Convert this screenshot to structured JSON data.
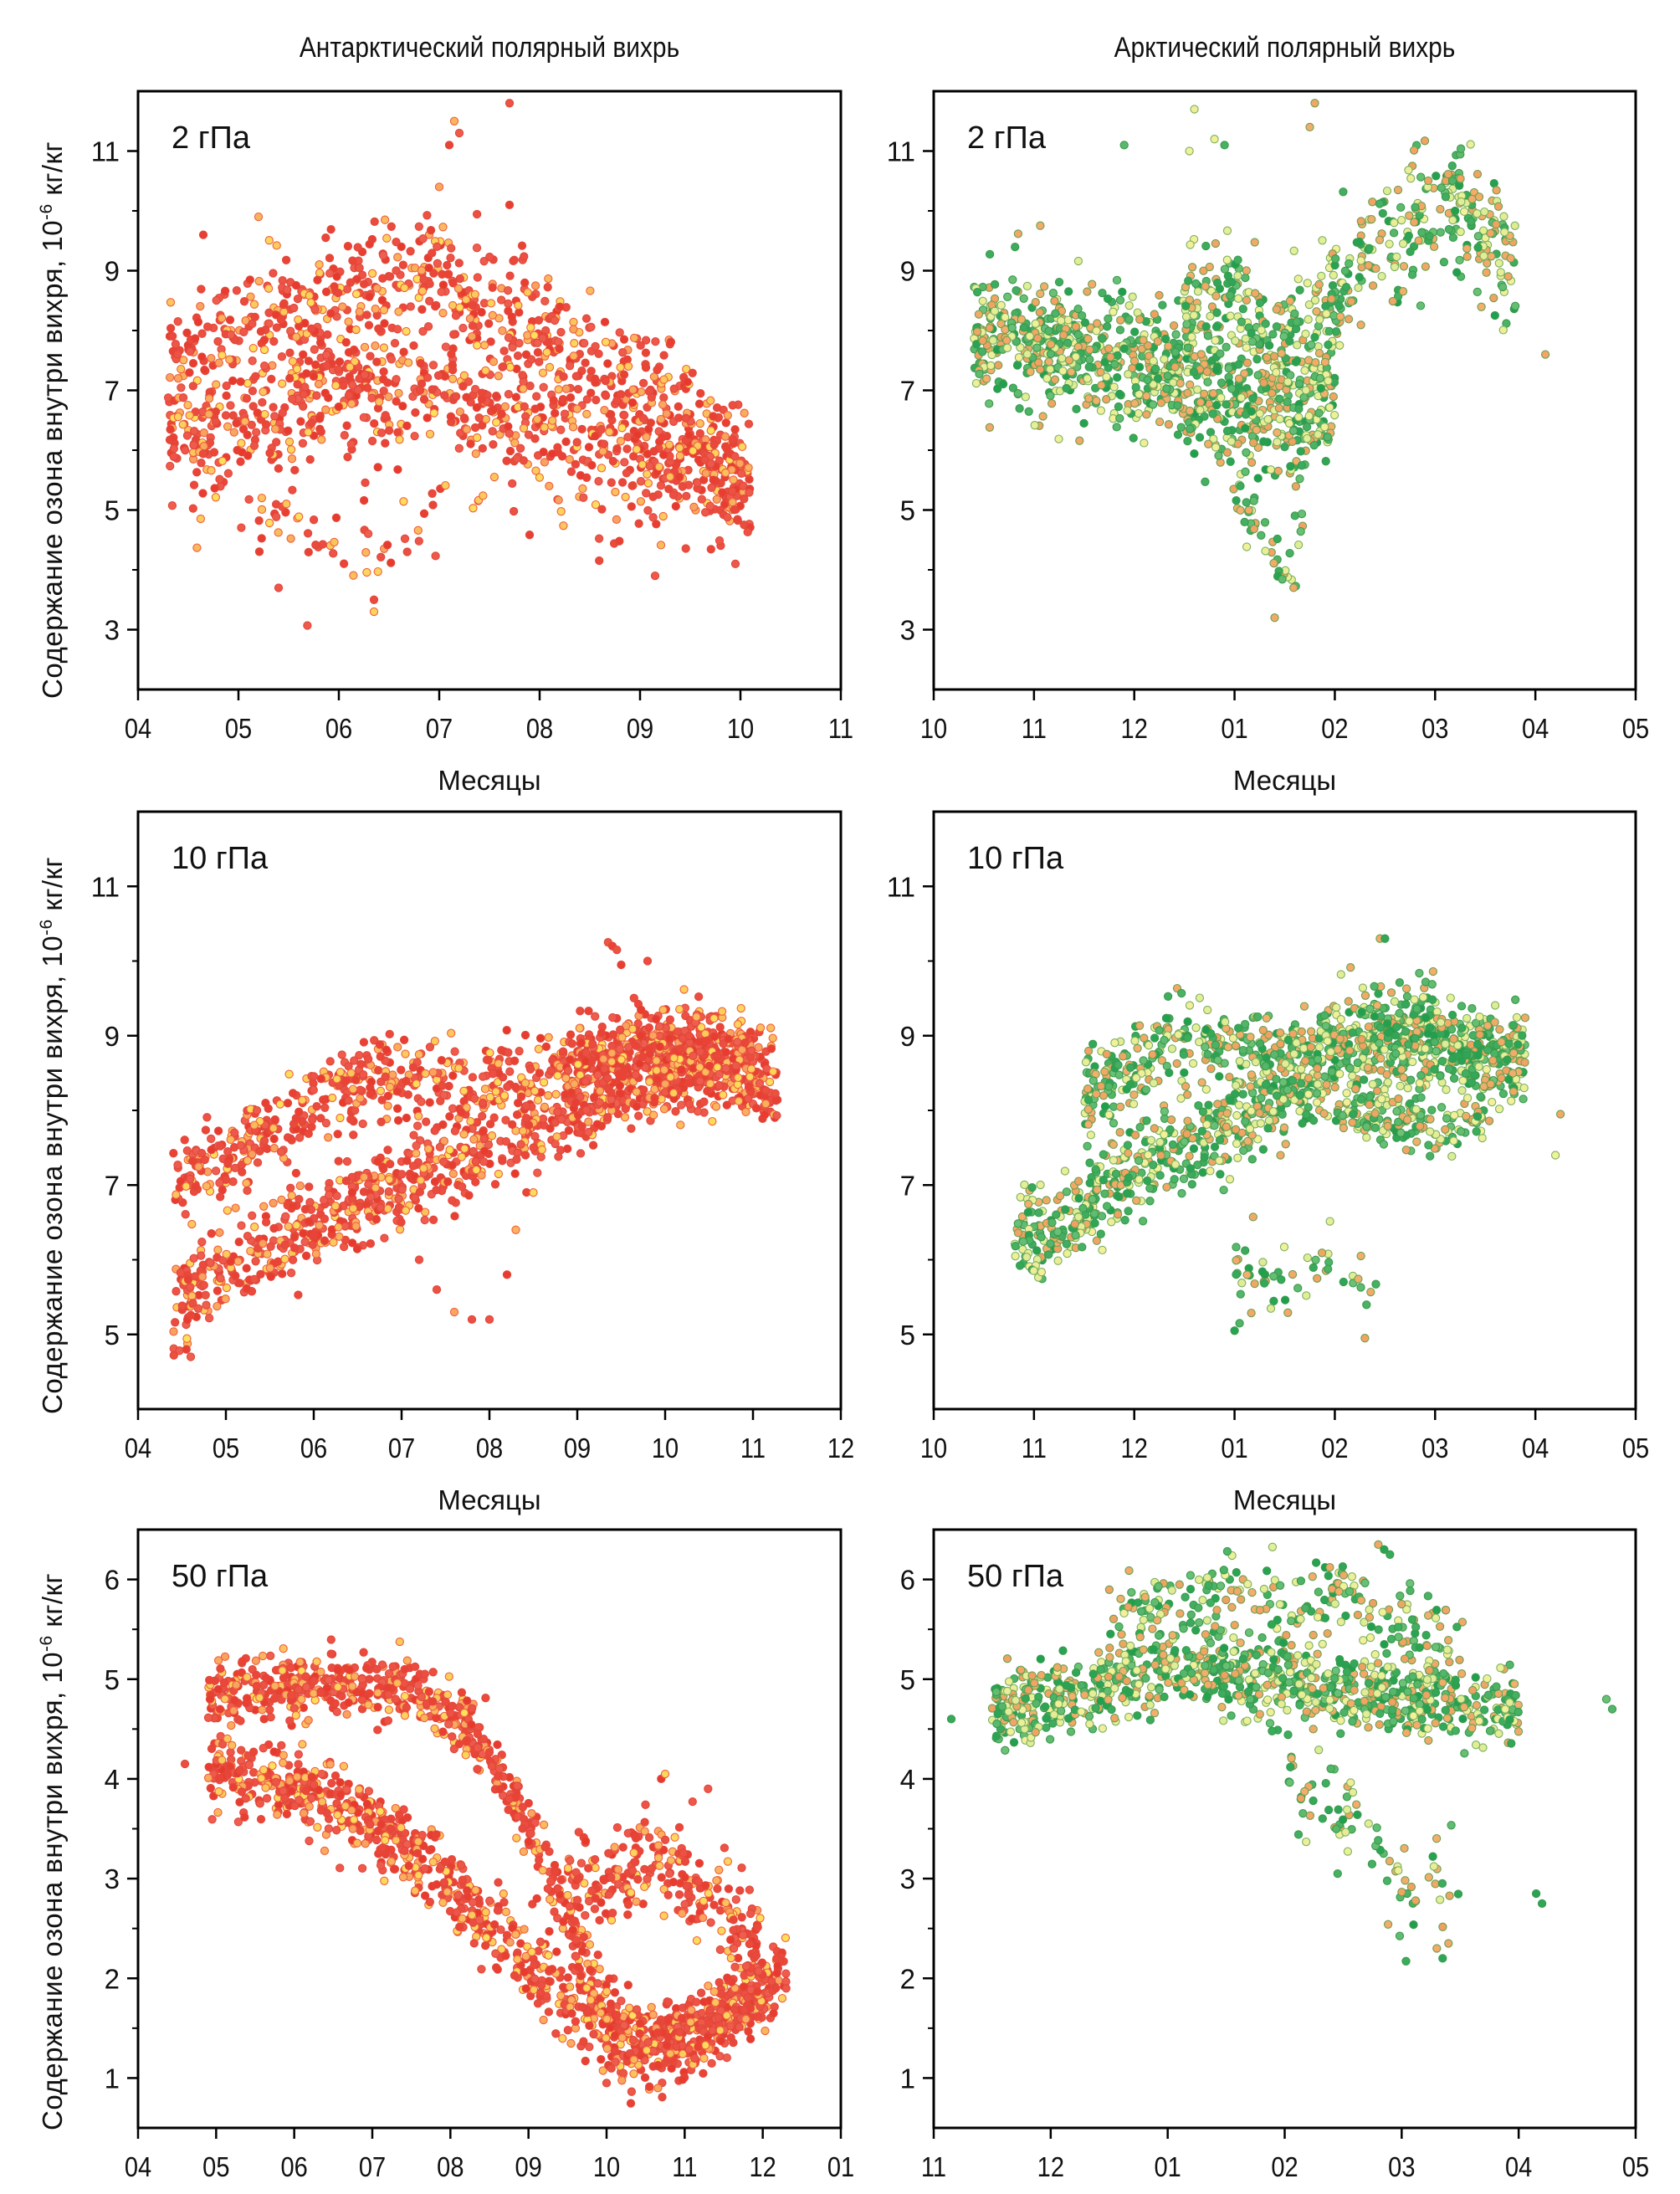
{
  "column_titles": {
    "left": "Антарктический полярный вихрь",
    "right": "Арктический полярный вихрь"
  },
  "y_axis_label": {
    "main": "Содержание озона внутри вихря, 10",
    "exponent": "-6",
    "unit": " кг/кг"
  },
  "x_axis_label": "Месяцы",
  "colors": {
    "antarctic_low": "#e8382c",
    "antarctic_high": "#fde15c",
    "antarctic_edge": "#e0483a",
    "arctic_low": "#1e9e4e",
    "arctic_mid": "#f0a060",
    "arctic_high": "#f4f09a",
    "arctic_edge": "#3a9a4a",
    "axis": "#000000"
  },
  "chart_data": [
    {
      "id": "ant-2",
      "type": "scatter",
      "panel_label": "2 гПа",
      "region": "Антарктический полярный вихрь",
      "xlabel": "Месяцы",
      "ylabel": "Содержание озона внутри вихря, 10^-6 кг/кг",
      "x_ticks": [
        "04",
        "05",
        "06",
        "07",
        "08",
        "09",
        "10",
        "11"
      ],
      "xlim": [
        0,
        7
      ],
      "ylim": [
        2,
        12
      ],
      "y_major_ticks": [
        3,
        5,
        7,
        9,
        11
      ],
      "y_minor_ticks": [
        4,
        6,
        8,
        10
      ],
      "palette": "antarctic",
      "grid": false,
      "series_bands": [
        {
          "x": [
            0.3,
            1.0,
            2.0,
            3.0,
            4.0,
            5.0,
            6.1
          ],
          "y": [
            7.4,
            8.0,
            8.6,
            8.9,
            8.0,
            7.0,
            5.6
          ],
          "spread": 0.9,
          "n": 700
        },
        {
          "x": [
            0.3,
            1.0,
            2.0,
            3.0,
            4.0,
            5.0,
            6.1
          ],
          "y": [
            6.2,
            6.4,
            7.0,
            7.1,
            6.4,
            5.9,
            5.2
          ],
          "spread": 0.8,
          "n": 700
        },
        {
          "x": [
            0.5,
            1.5,
            2.5,
            3.2,
            4.5,
            5.5
          ],
          "y": [
            5.5,
            4.8,
            4.5,
            6.0,
            5.5,
            4.6
          ],
          "spread": 0.9,
          "n": 120
        }
      ],
      "outliers": [
        [
          3.15,
          11.5
        ],
        [
          3.1,
          11.1
        ],
        [
          3.2,
          11.3
        ],
        [
          3.7,
          11.8
        ],
        [
          3.7,
          10.1
        ],
        [
          3.0,
          10.4
        ],
        [
          2.35,
          3.3
        ],
        [
          2.35,
          3.5
        ],
        [
          1.4,
          3.7
        ],
        [
          5.15,
          3.9
        ],
        [
          5.95,
          4.1
        ],
        [
          1.2,
          9.9
        ],
        [
          0.65,
          9.6
        ]
      ]
    },
    {
      "id": "arc-2",
      "type": "scatter",
      "panel_label": "2 гПа",
      "region": "Арктический полярный вихрь",
      "xlabel": "Месяцы",
      "ylabel": "Содержание озона внутри вихря, 10^-6 кг/кг",
      "x_ticks": [
        "10",
        "11",
        "12",
        "01",
        "02",
        "03",
        "04",
        "05"
      ],
      "xlim": [
        0,
        7
      ],
      "ylim": [
        2,
        12
      ],
      "y_major_ticks": [
        3,
        5,
        7,
        9,
        11
      ],
      "y_minor_ticks": [
        4,
        6,
        8,
        10
      ],
      "palette": "arctic",
      "grid": false,
      "series_bands": [
        {
          "x": [
            0.4,
            1.0,
            2.0,
            3.0,
            3.6,
            4.0
          ],
          "y": [
            7.8,
            7.8,
            7.5,
            6.8,
            6.6,
            7.1
          ],
          "spread": 1.0,
          "n": 900
        },
        {
          "x": [
            2.5,
            3.0,
            3.5,
            4.0,
            4.6,
            5.2,
            5.8
          ],
          "y": [
            8.3,
            8.6,
            7.8,
            8.6,
            9.6,
            10.2,
            8.8
          ],
          "spread": 0.9,
          "n": 450
        },
        {
          "x": [
            3.0,
            3.3,
            3.5,
            3.7
          ],
          "y": [
            5.3,
            4.6,
            3.8,
            4.8
          ],
          "spread": 0.5,
          "n": 40
        }
      ],
      "outliers": [
        [
          1.9,
          11.1
        ],
        [
          2.6,
          11.7
        ],
        [
          2.55,
          11.0
        ],
        [
          2.8,
          11.2
        ],
        [
          2.9,
          11.1
        ],
        [
          3.8,
          11.8
        ],
        [
          3.75,
          11.4
        ],
        [
          3.4,
          3.2
        ],
        [
          6.1,
          7.6
        ]
      ]
    },
    {
      "id": "ant-10",
      "type": "scatter",
      "panel_label": "10 гПа",
      "region": "Антарктический полярный вихрь",
      "xlabel": "Месяцы",
      "ylabel": "Содержание озона внутри вихря, 10^-6 кг/кг",
      "x_ticks": [
        "04",
        "05",
        "06",
        "07",
        "08",
        "09",
        "10",
        "11",
        "12"
      ],
      "xlim": [
        0,
        8
      ],
      "ylim": [
        4,
        12
      ],
      "y_major_ticks": [
        5,
        7,
        9,
        11
      ],
      "y_minor_ticks": [
        6,
        8,
        10
      ],
      "palette": "antarctic",
      "grid": false,
      "series_bands": [
        {
          "x": [
            0.4,
            1.0,
            2.0,
            2.6,
            3.5,
            4.5,
            5.5,
            6.5,
            7.2
          ],
          "y": [
            7.0,
            7.4,
            8.1,
            8.4,
            8.3,
            8.5,
            8.6,
            8.7,
            8.3
          ],
          "spread": 0.5,
          "n": 650
        },
        {
          "x": [
            0.4,
            1.0,
            2.0,
            3.0,
            4.0,
            5.0,
            6.0,
            7.0,
            7.3
          ],
          "y": [
            5.4,
            5.9,
            6.5,
            7.0,
            7.5,
            8.0,
            8.4,
            8.6,
            8.3
          ],
          "spread": 0.55,
          "n": 900
        },
        {
          "x": [
            5.0,
            5.5,
            6.0,
            6.5,
            7.0
          ],
          "y": [
            8.6,
            8.8,
            8.8,
            8.9,
            8.6
          ],
          "spread": 0.5,
          "n": 350
        }
      ],
      "outliers": [
        [
          5.35,
          10.25
        ],
        [
          5.4,
          10.2
        ],
        [
          5.45,
          10.15
        ],
        [
          5.5,
          9.95
        ],
        [
          5.8,
          10.0
        ],
        [
          3.2,
          6.0
        ],
        [
          3.4,
          5.6
        ],
        [
          3.6,
          5.3
        ],
        [
          3.8,
          5.2
        ],
        [
          4.0,
          5.2
        ],
        [
          4.2,
          5.8
        ],
        [
          4.3,
          6.4
        ],
        [
          4.5,
          6.9
        ],
        [
          0.6,
          4.7
        ],
        [
          0.55,
          4.8
        ]
      ]
    },
    {
      "id": "arc-10",
      "type": "scatter",
      "panel_label": "10 гПа",
      "region": "Арктический полярный вихрь",
      "xlabel": "Месяцы",
      "ylabel": "Содержание озона внутри вихря, 10^-6 кг/кг",
      "x_ticks": [
        "10",
        "11",
        "12",
        "01",
        "02",
        "03",
        "04",
        "05"
      ],
      "xlim": [
        0,
        7
      ],
      "ylim": [
        4,
        12
      ],
      "y_major_ticks": [
        5,
        7,
        9,
        11
      ],
      "y_minor_ticks": [
        6,
        8,
        10
      ],
      "palette": "arctic",
      "grid": false,
      "series_bands": [
        {
          "x": [
            0.8,
            1.2,
            2.0,
            3.0,
            4.0,
            5.0,
            5.9
          ],
          "y": [
            6.3,
            6.5,
            7.2,
            7.8,
            8.6,
            8.8,
            8.7
          ],
          "spread": 0.55,
          "n": 800
        },
        {
          "x": [
            1.5,
            2.0,
            2.5,
            3.0,
            3.5,
            4.0,
            4.5,
            5.0,
            5.9
          ],
          "y": [
            8.2,
            8.6,
            8.9,
            8.8,
            8.6,
            9.0,
            9.2,
            9.1,
            8.6
          ],
          "spread": 0.55,
          "n": 650
        },
        {
          "x": [
            4.0,
            4.5,
            5.0,
            5.5
          ],
          "y": [
            8.0,
            7.9,
            7.8,
            7.9
          ],
          "spread": 0.3,
          "n": 150
        },
        {
          "x": [
            3.0,
            3.5,
            4.0,
            4.5
          ],
          "y": [
            5.9,
            5.7,
            5.9,
            5.4
          ],
          "spread": 0.5,
          "n": 50
        }
      ],
      "outliers": [
        [
          3.0,
          5.05
        ],
        [
          3.05,
          5.15
        ],
        [
          4.3,
          4.95
        ],
        [
          4.45,
          10.3
        ],
        [
          4.5,
          10.3
        ],
        [
          6.2,
          7.4
        ],
        [
          6.25,
          7.95
        ]
      ]
    },
    {
      "id": "ant-50",
      "type": "scatter",
      "panel_label": "50 гПа",
      "region": "Антарктический полярный вихрь",
      "xlabel": "Месяцы",
      "ylabel": "Содержание озона внутри вихря, 10^-6 кг/кг",
      "x_ticks": [
        "04",
        "05",
        "06",
        "07",
        "08",
        "09",
        "10",
        "11",
        "12",
        "01"
      ],
      "xlim": [
        0,
        9
      ],
      "ylim": [
        0.5,
        6.5
      ],
      "y_major_ticks": [
        1,
        2,
        3,
        4,
        5,
        6
      ],
      "y_minor_ticks": [
        1.5,
        2.5,
        3.5,
        4.5,
        5.5
      ],
      "palette": "antarctic",
      "grid": false,
      "series_bands": [
        {
          "x": [
            0.9,
            1.5,
            2.5,
            3.5,
            4.3,
            5.0,
            5.6,
            6.0,
            6.6,
            7.3,
            8.0,
            8.3
          ],
          "y": [
            4.8,
            4.9,
            5.0,
            4.9,
            4.5,
            3.5,
            2.4,
            1.6,
            1.4,
            1.5,
            1.8,
            2.1
          ],
          "spread": 0.3,
          "n": 900
        },
        {
          "x": [
            0.9,
            1.5,
            2.5,
            3.5,
            4.5,
            5.0,
            5.5,
            6.0,
            6.5,
            7.0,
            8.0
          ],
          "y": [
            4.1,
            4.0,
            3.8,
            3.3,
            2.5,
            2.2,
            1.8,
            1.4,
            1.3,
            1.3,
            2.0
          ],
          "spread": 0.35,
          "n": 900
        },
        {
          "x": [
            5.5,
            6.0,
            6.5,
            7.0,
            7.5,
            8.0
          ],
          "y": [
            3.0,
            2.9,
            3.2,
            3.0,
            2.7,
            2.4
          ],
          "spread": 0.4,
          "n": 250
        }
      ],
      "outliers": [
        [
          0.6,
          4.15
        ],
        [
          6.7,
          4.0
        ],
        [
          6.75,
          4.05
        ],
        [
          7.3,
          3.9
        ],
        [
          8.3,
          1.9
        ],
        [
          8.25,
          1.8
        ],
        [
          6.0,
          0.95
        ]
      ]
    },
    {
      "id": "arc-50",
      "type": "scatter",
      "panel_label": "50 гПа",
      "region": "Арктический полярный вихрь",
      "xlabel": "Месяцы",
      "ylabel": "Содержание озона внутри вихря, 10^-6 кг/кг",
      "x_ticks": [
        "11",
        "12",
        "01",
        "02",
        "03",
        "04",
        "05"
      ],
      "xlim": [
        0,
        6
      ],
      "ylim": [
        0.5,
        6.5
      ],
      "y_major_ticks": [
        1,
        2,
        3,
        4,
        5,
        6
      ],
      "y_minor_ticks": [
        1.5,
        2.5,
        3.5,
        4.5,
        5.5
      ],
      "palette": "arctic",
      "grid": false,
      "series_bands": [
        {
          "x": [
            0.5,
            1.0,
            2.0,
            3.0,
            4.0,
            5.0
          ],
          "y": [
            4.7,
            4.8,
            5.1,
            5.0,
            4.8,
            4.7
          ],
          "spread": 0.35,
          "n": 900
        },
        {
          "x": [
            1.5,
            2.0,
            2.5,
            3.0,
            3.5,
            4.0,
            4.5
          ],
          "y": [
            5.6,
            5.7,
            5.9,
            5.8,
            5.8,
            5.5,
            5.3
          ],
          "spread": 0.35,
          "n": 220
        },
        {
          "x": [
            3.0,
            3.5,
            4.0,
            4.5
          ],
          "y": [
            4.0,
            3.6,
            3.0,
            2.9
          ],
          "spread": 0.45,
          "n": 80
        }
      ],
      "outliers": [
        [
          3.8,
          6.35
        ],
        [
          3.85,
          6.3
        ],
        [
          3.9,
          6.25
        ],
        [
          4.3,
          2.3
        ],
        [
          4.35,
          2.2
        ],
        [
          4.4,
          2.35
        ],
        [
          5.15,
          2.85
        ],
        [
          5.2,
          2.75
        ],
        [
          5.75,
          4.8
        ],
        [
          5.8,
          4.7
        ],
        [
          0.15,
          4.6
        ]
      ]
    }
  ]
}
